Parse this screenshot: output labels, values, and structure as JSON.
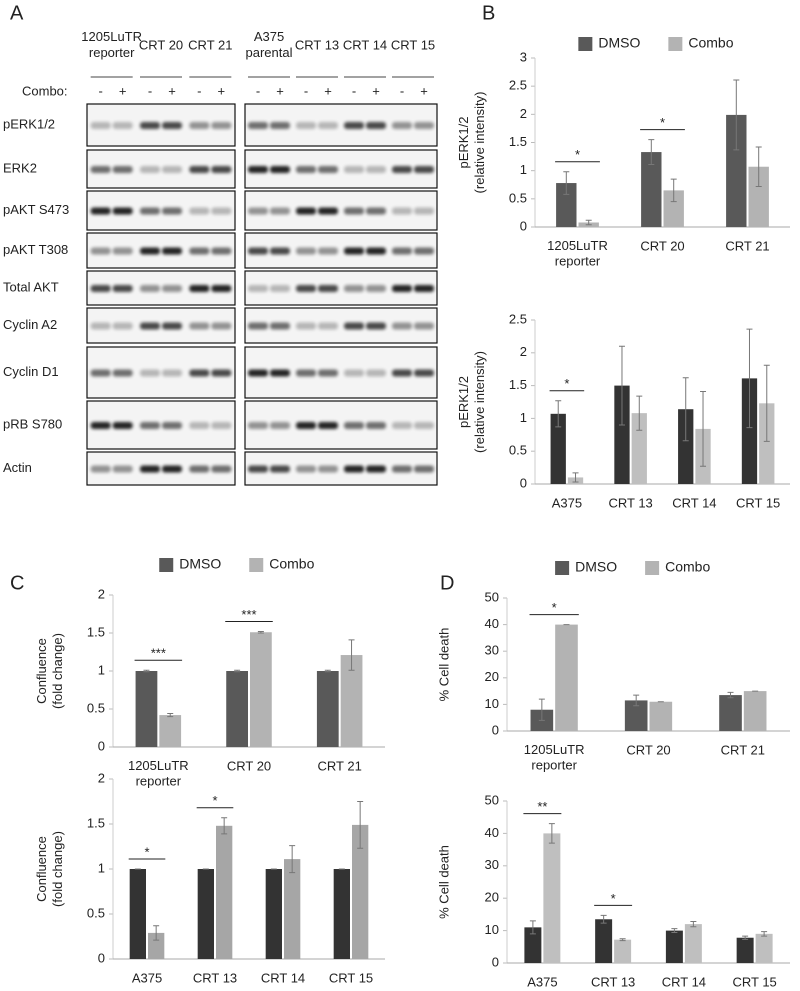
{
  "panel_labels": [
    "A",
    "B",
    "C",
    "D"
  ],
  "blot": {
    "combo_label": "Combo:",
    "signs": [
      "-",
      "+"
    ],
    "lanes_left": [
      "1205LuTR\nreporter",
      "CRT 20",
      "CRT 21"
    ],
    "lanes_right": [
      "A375\nparental",
      "CRT 13",
      "CRT 14",
      "CRT 15"
    ],
    "rows": [
      "pERK1/2",
      "ERK2",
      "pAKT S473",
      "pAKT T308",
      "Total AKT",
      "Cyclin A2",
      "Cyclin D1",
      "pRB S780",
      "Actin"
    ]
  },
  "chart_data": [
    {
      "type": "bar",
      "legend": true,
      "ylabel": "pERK1/2\n(relative intensity)",
      "categories": [
        "1205LuTR\nreporter",
        "CRT 20",
        "CRT 21"
      ],
      "ylim": [
        0,
        3
      ],
      "yticks": [
        0,
        0.5,
        1,
        1.5,
        2,
        2.5,
        3
      ],
      "series": [
        {
          "name": "DMSO",
          "color": "#595959",
          "values": [
            0.78,
            1.33,
            1.99
          ],
          "errors": [
            0.2,
            0.22,
            0.62
          ]
        },
        {
          "name": "Combo",
          "color": "#b3b3b3",
          "values": [
            0.08,
            0.65,
            1.07
          ],
          "errors": [
            0.04,
            0.2,
            0.35
          ]
        }
      ],
      "significance": [
        "*",
        "*",
        null
      ]
    },
    {
      "type": "bar",
      "legend": false,
      "ylabel": "pERK1/2\n(relative intensity)",
      "categories": [
        "A375",
        "CRT 13",
        "CRT 14",
        "CRT 15"
      ],
      "ylim": [
        0,
        2.5
      ],
      "yticks": [
        0,
        0.5,
        1,
        1.5,
        2,
        2.5
      ],
      "series": [
        {
          "color": "#333333",
          "values": [
            1.07,
            1.5,
            1.14,
            1.61
          ],
          "errors": [
            0.2,
            0.6,
            0.48,
            0.75
          ]
        },
        {
          "color": "#bfbfbf",
          "values": [
            0.1,
            1.08,
            0.84,
            1.23
          ],
          "errors": [
            0.07,
            0.26,
            0.57,
            0.58
          ]
        }
      ],
      "significance": [
        "*",
        null,
        null,
        null
      ]
    },
    {
      "type": "bar",
      "legend": true,
      "ylabel": "Confluence\n(fold change)",
      "categories": [
        "1205LuTR\nreporter",
        "CRT 20",
        "CRT 21"
      ],
      "ylim": [
        0,
        2
      ],
      "yticks": [
        0,
        0.5,
        1,
        1.5,
        2
      ],
      "series": [
        {
          "name": "DMSO",
          "color": "#595959",
          "values": [
            1,
            1,
            1
          ],
          "errors": [
            0.01,
            0.01,
            0.01
          ]
        },
        {
          "name": "Combo",
          "color": "#b3b3b3",
          "values": [
            0.42,
            1.51,
            1.21
          ],
          "errors": [
            0.02,
            0.01,
            0.2
          ]
        }
      ],
      "significance": [
        "***",
        "***",
        null
      ]
    },
    {
      "type": "bar",
      "legend": false,
      "ylabel": "Confluence\n(fold change)",
      "categories": [
        "A375",
        "CRT 13",
        "CRT 14",
        "CRT 15"
      ],
      "ylim": [
        0,
        2
      ],
      "yticks": [
        0,
        0.5,
        1,
        1.5,
        2
      ],
      "series": [
        {
          "color": "#333333",
          "values": [
            1,
            1,
            1,
            1
          ],
          "errors": [
            0,
            0,
            0,
            0
          ]
        },
        {
          "color": "#a6a6a6",
          "values": [
            0.29,
            1.48,
            1.11,
            1.49
          ],
          "errors": [
            0.08,
            0.09,
            0.15,
            0.26
          ]
        }
      ],
      "significance": [
        "*",
        "*",
        null,
        null
      ]
    },
    {
      "type": "bar",
      "legend": true,
      "ylabel": "% Cell death",
      "categories": [
        "1205LuTR\nreporter",
        "CRT 20",
        "CRT 21"
      ],
      "ylim": [
        0,
        50
      ],
      "yticks": [
        0,
        10,
        20,
        30,
        40,
        50
      ],
      "series": [
        {
          "name": "DMSO",
          "color": "#595959",
          "values": [
            8,
            11.5,
            13.5
          ],
          "errors": [
            4,
            2,
            1
          ]
        },
        {
          "name": "Combo",
          "color": "#b3b3b3",
          "values": [
            40,
            11,
            15
          ],
          "errors": [
            0,
            0,
            0
          ]
        }
      ],
      "significance": [
        "*",
        null,
        null
      ]
    },
    {
      "type": "bar",
      "legend": false,
      "ylabel": "% Cell death",
      "categories": [
        "A375",
        "CRT 13",
        "CRT 14",
        "CRT 15"
      ],
      "ylim": [
        0,
        50
      ],
      "yticks": [
        0,
        10,
        20,
        30,
        40,
        50
      ],
      "series": [
        {
          "color": "#333333",
          "values": [
            11,
            13.5,
            10,
            7.8
          ],
          "errors": [
            2,
            1.2,
            0.6,
            0.5
          ]
        },
        {
          "color": "#bfbfbf",
          "values": [
            40,
            7.2,
            12,
            9
          ],
          "errors": [
            3,
            0.3,
            0.8,
            0.7
          ]
        }
      ],
      "significance": [
        "**",
        "*",
        null,
        null
      ]
    }
  ]
}
